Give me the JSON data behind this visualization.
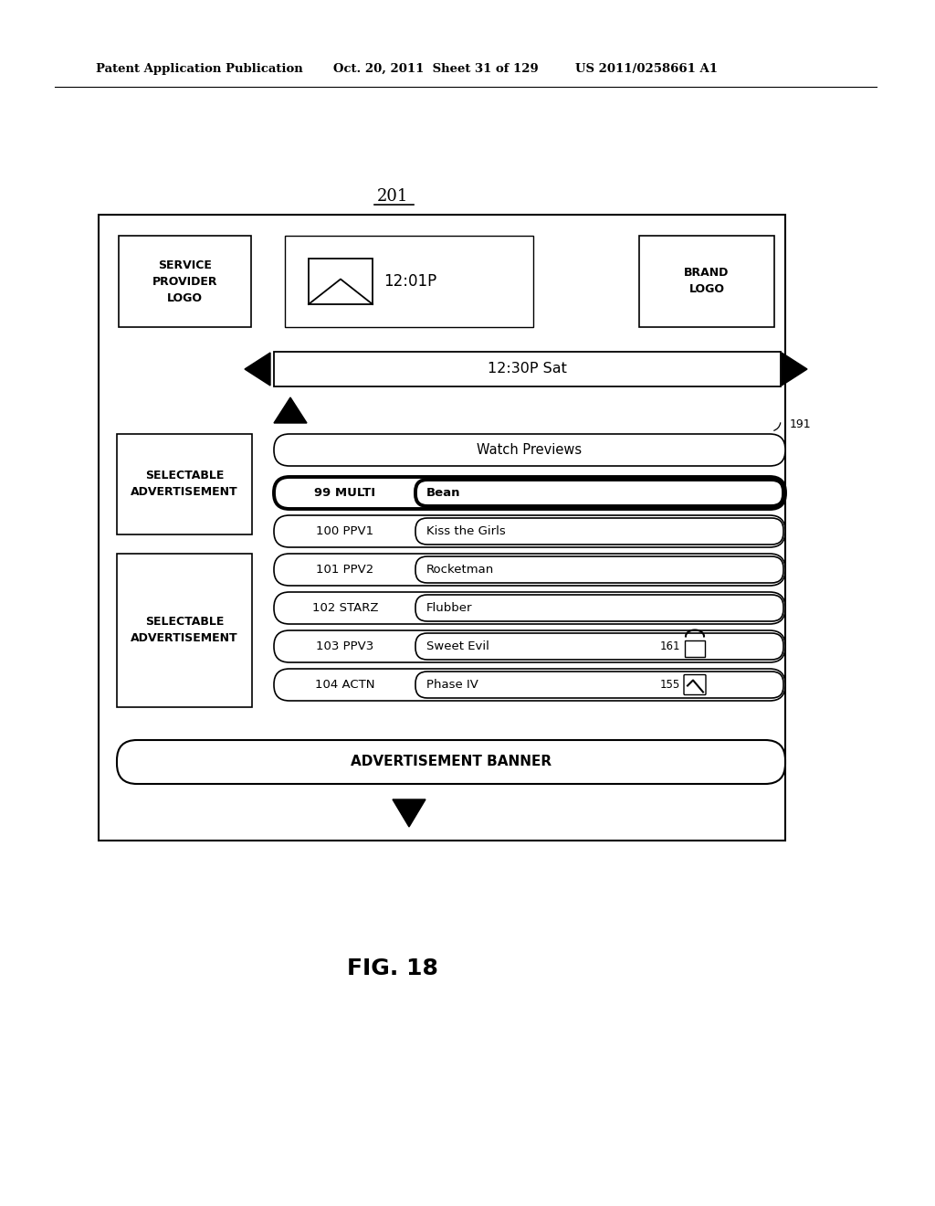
{
  "bg_color": "#ffffff",
  "header_left": "Patent Application Publication",
  "header_mid": "Oct. 20, 2011  Sheet 31 of 129",
  "header_right": "US 2011/0258661 A1",
  "diagram_label": "201",
  "fig_label": "FIG. 18",
  "service_provider_logo_text": "SERVICE\nPROVIDER\nLOGO",
  "brand_logo_text": "BRAND\nLOGO",
  "time_text": "12:01P",
  "nav_time_text": "12:30P Sat",
  "watch_previews_text": "Watch Previews",
  "selectable_ad1_text": "SELECTABLE\nADVERTISEMENT",
  "selectable_ad2_text": "SELECTABLE\nADVERTISEMENT",
  "ad_banner_text": "ADVERTISEMENT BANNER",
  "channels": [
    {
      "num": "99 MULTI",
      "title": "Bean",
      "bold": true,
      "has_lock": false,
      "has_check": false,
      "icon_label": ""
    },
    {
      "num": "100 PPV1",
      "title": "Kiss the Girls",
      "bold": false,
      "has_lock": false,
      "has_check": false,
      "icon_label": ""
    },
    {
      "num": "101 PPV2",
      "title": "Rocketman",
      "bold": false,
      "has_lock": false,
      "has_check": false,
      "icon_label": ""
    },
    {
      "num": "102 STARZ",
      "title": "Flubber",
      "bold": false,
      "has_lock": false,
      "has_check": false,
      "icon_label": ""
    },
    {
      "num": "103 PPV3",
      "title": "Sweet Evil",
      "bold": false,
      "has_lock": true,
      "has_check": false,
      "icon_label": "161"
    },
    {
      "num": "104 ACTN",
      "title": "Phase IV",
      "bold": false,
      "has_lock": false,
      "has_check": true,
      "icon_label": "155"
    }
  ],
  "ref_191": "191"
}
